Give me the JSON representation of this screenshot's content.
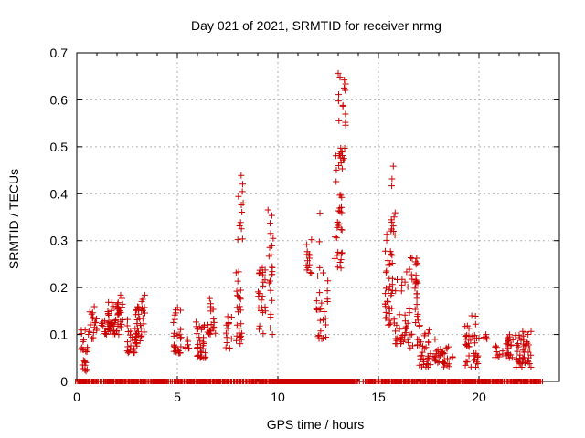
{
  "chart_data": {
    "type": "scatter",
    "title": "Day 021 of 2021, SRMTID for receiver nrmg",
    "xlabel": "GPS time / hours",
    "ylabel": "SRMTID / TECUs",
    "xlim": [
      0,
      24
    ],
    "ylim": [
      0,
      0.7
    ],
    "xticks": [
      0,
      5,
      10,
      15,
      20
    ],
    "yticks": [
      0,
      0.1,
      0.2,
      0.3,
      0.4,
      0.5,
      0.6,
      0.7
    ],
    "ytick_labels": [
      "0",
      "0.1",
      "0.2",
      "0.3",
      "0.4",
      "0.5",
      "0.6",
      "0.7"
    ],
    "grid": true,
    "marker": "+",
    "color": "#cc0000",
    "zero_markers": [
      0.1,
      0.2,
      0.3,
      0.4,
      0.5,
      0.6,
      0.8,
      0.9,
      1.0,
      1.4,
      1.5,
      1.6,
      1.7,
      1.8,
      2.0,
      2.1,
      2.2,
      2.3,
      2.4,
      2.6,
      2.7,
      2.8,
      2.9,
      3.0,
      3.2,
      3.3,
      3.4,
      3.7,
      3.8,
      3.9,
      4.0,
      4.1,
      4.2,
      4.3,
      4.4,
      4.5,
      4.9,
      5.0,
      5.1,
      5.2,
      5.5,
      5.6,
      5.7,
      5.8,
      6.0,
      6.1,
      6.2,
      6.3,
      6.4,
      6.5,
      6.6,
      6.8,
      6.9,
      7.0,
      7.1,
      7.3,
      7.4,
      7.5,
      7.7,
      7.8,
      8.0,
      8.1,
      8.3,
      8.4,
      8.6,
      8.7,
      8.8,
      8.9,
      9.1,
      9.2,
      9.3,
      9.4,
      9.6,
      9.7,
      9.8,
      9.9,
      10.0,
      10.1,
      10.2,
      10.3,
      10.4,
      10.5,
      10.6,
      10.7,
      10.8,
      10.9,
      11.0,
      11.1,
      11.2,
      11.3,
      11.4,
      11.5,
      11.6,
      11.7,
      11.8,
      11.9,
      12.0,
      12.1,
      12.2,
      12.3,
      12.4,
      12.5,
      12.6,
      12.7,
      12.8,
      12.9,
      13.0,
      13.1,
      13.2,
      13.3,
      13.4,
      13.5,
      13.6,
      13.7,
      13.8,
      13.9,
      14.4,
      14.5,
      14.6,
      14.7,
      14.8,
      15.0,
      15.2,
      15.3,
      15.4,
      15.5,
      15.7,
      15.8,
      15.9,
      16.0,
      16.1,
      16.3,
      16.4,
      16.5,
      16.7,
      16.8,
      16.9,
      17.1,
      17.2,
      17.3,
      17.5,
      17.6,
      17.7,
      17.8,
      18.0,
      18.1,
      18.2,
      18.3,
      18.5,
      18.6,
      18.7,
      18.8,
      18.9,
      19.0,
      19.2,
      19.3,
      19.4,
      19.5,
      19.6,
      19.7,
      19.8,
      20.0,
      20.1,
      20.2,
      20.3,
      20.4,
      20.5,
      20.7,
      20.8,
      20.9,
      21.0,
      21.1,
      21.3,
      21.4,
      21.6,
      21.7,
      21.8,
      21.9,
      22.1,
      22.2,
      22.3,
      22.4,
      22.6,
      22.7,
      22.8,
      22.9,
      23.0
    ],
    "clusters": [
      {
        "t0": 0.2,
        "t1": 0.6,
        "lo": 0.02,
        "hi": 0.11,
        "n": 24
      },
      {
        "t0": 0.6,
        "t1": 1.0,
        "lo": 0.09,
        "hi": 0.17,
        "n": 18
      },
      {
        "t0": 1.2,
        "t1": 1.5,
        "lo": 0.1,
        "hi": 0.13,
        "n": 10
      },
      {
        "t0": 1.5,
        "t1": 2.1,
        "lo": 0.1,
        "hi": 0.17,
        "n": 40
      },
      {
        "t0": 2.0,
        "t1": 2.3,
        "lo": 0.11,
        "hi": 0.2,
        "n": 18
      },
      {
        "t0": 2.5,
        "t1": 3.0,
        "lo": 0.06,
        "hi": 0.14,
        "n": 28
      },
      {
        "t0": 2.9,
        "t1": 3.4,
        "lo": 0.08,
        "hi": 0.19,
        "n": 30
      },
      {
        "t0": 4.8,
        "t1": 5.2,
        "lo": 0.06,
        "hi": 0.16,
        "n": 28
      },
      {
        "t0": 5.4,
        "t1": 5.6,
        "lo": 0.07,
        "hi": 0.09,
        "n": 8
      },
      {
        "t0": 5.9,
        "t1": 6.4,
        "lo": 0.05,
        "hi": 0.13,
        "n": 34
      },
      {
        "t0": 6.5,
        "t1": 6.9,
        "lo": 0.1,
        "hi": 0.18,
        "n": 20
      },
      {
        "t0": 7.4,
        "t1": 7.7,
        "lo": 0.07,
        "hi": 0.16,
        "n": 14
      },
      {
        "t0": 7.9,
        "t1": 8.2,
        "lo": 0.08,
        "hi": 0.25,
        "n": 24
      },
      {
        "t0": 8.0,
        "t1": 8.3,
        "lo": 0.3,
        "hi": 0.45,
        "n": 12
      },
      {
        "t0": 9.0,
        "t1": 9.4,
        "lo": 0.1,
        "hi": 0.25,
        "n": 24
      },
      {
        "t0": 9.5,
        "t1": 9.8,
        "lo": 0.1,
        "hi": 0.37,
        "n": 22
      },
      {
        "t0": 11.4,
        "t1": 11.7,
        "lo": 0.23,
        "hi": 0.31,
        "n": 14
      },
      {
        "t0": 11.9,
        "t1": 12.5,
        "lo": 0.09,
        "hi": 0.37,
        "n": 28
      },
      {
        "t0": 12.8,
        "t1": 13.2,
        "lo": 0.24,
        "hi": 0.52,
        "n": 30
      },
      {
        "t0": 13.0,
        "t1": 13.4,
        "lo": 0.45,
        "hi": 0.66,
        "n": 26
      },
      {
        "t0": 15.3,
        "t1": 15.8,
        "lo": 0.12,
        "hi": 0.32,
        "n": 40
      },
      {
        "t0": 15.6,
        "t1": 15.9,
        "lo": 0.3,
        "hi": 0.47,
        "n": 12
      },
      {
        "t0": 15.8,
        "t1": 16.4,
        "lo": 0.08,
        "hi": 0.22,
        "n": 30
      },
      {
        "t0": 16.4,
        "t1": 17.0,
        "lo": 0.07,
        "hi": 0.28,
        "n": 40
      },
      {
        "t0": 17.0,
        "t1": 17.6,
        "lo": 0.03,
        "hi": 0.12,
        "n": 34
      },
      {
        "t0": 17.7,
        "t1": 18.3,
        "lo": 0.04,
        "hi": 0.09,
        "n": 22
      },
      {
        "t0": 18.2,
        "t1": 18.7,
        "lo": 0.03,
        "hi": 0.08,
        "n": 14
      },
      {
        "t0": 19.3,
        "t1": 20.0,
        "lo": 0.03,
        "hi": 0.14,
        "n": 36
      },
      {
        "t0": 20.2,
        "t1": 20.5,
        "lo": 0.09,
        "hi": 0.1,
        "n": 6
      },
      {
        "t0": 20.8,
        "t1": 21.2,
        "lo": 0.05,
        "hi": 0.08,
        "n": 10
      },
      {
        "t0": 21.3,
        "t1": 21.7,
        "lo": 0.05,
        "hi": 0.1,
        "n": 20
      },
      {
        "t0": 21.8,
        "t1": 22.6,
        "lo": 0.03,
        "hi": 0.11,
        "n": 46
      }
    ]
  }
}
